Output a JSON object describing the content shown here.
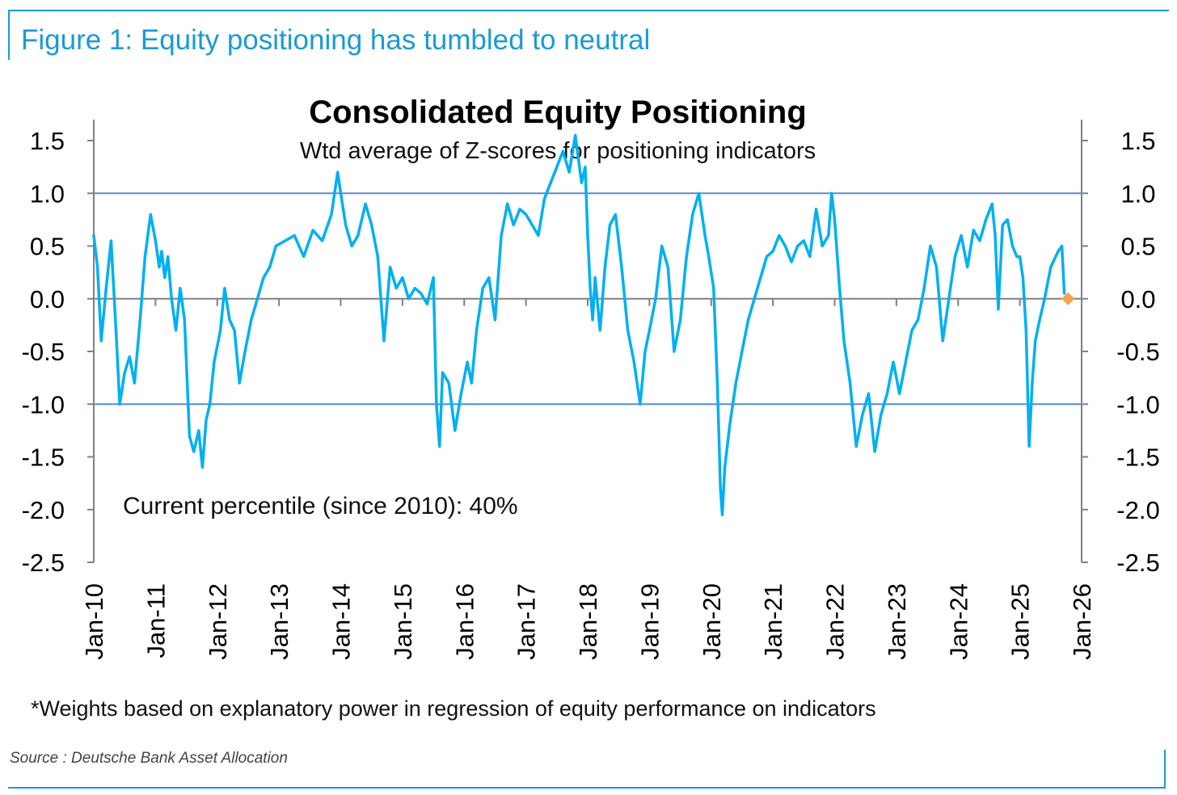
{
  "figure": {
    "title": "Figure 1: Equity positioning has tumbled to neutral",
    "footnote": "*Weights based on explanatory power in regression of equity performance on indicators",
    "source": "Source : Deutsche Bank Asset Allocation"
  },
  "colors": {
    "frame": "#1a9ad6",
    "series": "#00b0f0",
    "marker": "#f5a04c",
    "refline": "#5b8ac9",
    "axis": "#808080"
  },
  "chart_data": {
    "type": "line",
    "title": "Consolidated Equity Positioning",
    "subtitle": "Wtd average of Z-scores for positioning indicators",
    "annotation": "Current percentile (since 2010): 40%",
    "xlabel": "",
    "ylabel": "",
    "ylim": [
      -2.5,
      1.5
    ],
    "xlim": [
      2010.0,
      2026.0
    ],
    "yticks": [
      "1.5",
      "1.0",
      "0.5",
      "0.0",
      "-0.5",
      "-1.0",
      "-1.5",
      "-2.0",
      "-2.5"
    ],
    "ytick_values": [
      1.5,
      1.0,
      0.5,
      0.0,
      -0.5,
      -1.0,
      -1.5,
      -2.0,
      -2.5
    ],
    "xticks": [
      "Jan-10",
      "Jan-11",
      "Jan-12",
      "Jan-13",
      "Jan-14",
      "Jan-15",
      "Jan-16",
      "Jan-17",
      "Jan-18",
      "Jan-19",
      "Jan-20",
      "Jan-21",
      "Jan-22",
      "Jan-23",
      "Jan-24",
      "Jan-25",
      "Jan-26"
    ],
    "reference_lines": [
      1.0,
      -1.0
    ],
    "legend": "none",
    "series": [
      {
        "name": "Consolidated Equity Positioning",
        "x": [
          2010.0,
          2010.06,
          2010.12,
          2010.2,
          2010.28,
          2010.36,
          2010.42,
          2010.5,
          2010.58,
          2010.66,
          2010.75,
          2010.83,
          2010.92,
          2011.0,
          2011.06,
          2011.1,
          2011.15,
          2011.2,
          2011.26,
          2011.33,
          2011.4,
          2011.47,
          2011.55,
          2011.62,
          2011.7,
          2011.76,
          2011.82,
          2011.88,
          2011.95,
          2012.05,
          2012.12,
          2012.2,
          2012.28,
          2012.36,
          2012.45,
          2012.55,
          2012.65,
          2012.75,
          2012.85,
          2012.95,
          2013.1,
          2013.25,
          2013.4,
          2013.55,
          2013.7,
          2013.85,
          2013.95,
          2014.0,
          2014.08,
          2014.18,
          2014.28,
          2014.4,
          2014.5,
          2014.6,
          2014.7,
          2014.8,
          2014.9,
          2015.0,
          2015.1,
          2015.2,
          2015.3,
          2015.4,
          2015.5,
          2015.55,
          2015.6,
          2015.65,
          2015.75,
          2015.85,
          2015.95,
          2016.05,
          2016.12,
          2016.2,
          2016.3,
          2016.4,
          2016.5,
          2016.6,
          2016.7,
          2016.8,
          2016.9,
          2017.0,
          2017.1,
          2017.2,
          2017.3,
          2017.4,
          2017.5,
          2017.6,
          2017.7,
          2017.8,
          2017.9,
          2017.96,
          2018.0,
          2018.04,
          2018.08,
          2018.12,
          2018.2,
          2018.28,
          2018.36,
          2018.45,
          2018.55,
          2018.65,
          2018.75,
          2018.85,
          2018.93,
          2019.0,
          2019.1,
          2019.2,
          2019.3,
          2019.4,
          2019.5,
          2019.6,
          2019.7,
          2019.8,
          2019.9,
          2019.96,
          2020.04,
          2020.1,
          2020.15,
          2020.18,
          2020.22,
          2020.3,
          2020.4,
          2020.5,
          2020.6,
          2020.7,
          2020.8,
          2020.9,
          2021.0,
          2021.1,
          2021.2,
          2021.3,
          2021.4,
          2021.5,
          2021.6,
          2021.7,
          2021.8,
          2021.9,
          2021.95,
          2022.0,
          2022.08,
          2022.15,
          2022.25,
          2022.35,
          2022.45,
          2022.55,
          2022.65,
          2022.75,
          2022.85,
          2022.95,
          2023.05,
          2023.15,
          2023.25,
          2023.35,
          2023.45,
          2023.55,
          2023.65,
          2023.75,
          2023.85,
          2023.95,
          2024.05,
          2024.15,
          2024.25,
          2024.35,
          2024.45,
          2024.55,
          2024.6,
          2024.65,
          2024.72,
          2024.8,
          2024.88,
          2024.95,
          2025.0,
          2025.05,
          2025.1,
          2025.15,
          2025.2,
          2025.25,
          2025.32,
          2025.4,
          2025.5,
          2025.58,
          2025.62,
          2025.68,
          2025.72
        ],
        "values": [
          0.6,
          0.3,
          -0.4,
          0.1,
          0.55,
          -0.3,
          -1.0,
          -0.7,
          -0.55,
          -0.8,
          -0.2,
          0.4,
          0.8,
          0.55,
          0.3,
          0.45,
          0.2,
          0.4,
          0.0,
          -0.3,
          0.1,
          -0.2,
          -1.3,
          -1.45,
          -1.25,
          -1.6,
          -1.15,
          -1.0,
          -0.6,
          -0.3,
          0.1,
          -0.2,
          -0.3,
          -0.8,
          -0.5,
          -0.2,
          0.0,
          0.2,
          0.3,
          0.5,
          0.55,
          0.6,
          0.4,
          0.65,
          0.55,
          0.8,
          1.2,
          1.0,
          0.7,
          0.5,
          0.6,
          0.9,
          0.7,
          0.4,
          -0.4,
          0.3,
          0.1,
          0.2,
          0.0,
          0.1,
          0.05,
          -0.05,
          0.2,
          -1.0,
          -1.4,
          -0.7,
          -0.8,
          -1.25,
          -0.9,
          -0.6,
          -0.8,
          -0.3,
          0.1,
          0.2,
          -0.2,
          0.6,
          0.9,
          0.7,
          0.85,
          0.8,
          0.7,
          0.6,
          0.95,
          1.1,
          1.25,
          1.4,
          1.2,
          1.55,
          1.1,
          1.25,
          0.6,
          0.1,
          -0.2,
          0.2,
          -0.3,
          0.3,
          0.7,
          0.8,
          0.3,
          -0.3,
          -0.6,
          -1.0,
          -0.5,
          -0.3,
          0.0,
          0.5,
          0.3,
          -0.5,
          -0.2,
          0.4,
          0.8,
          1.0,
          0.6,
          0.4,
          0.1,
          -0.8,
          -1.8,
          -2.05,
          -1.6,
          -1.2,
          -0.8,
          -0.5,
          -0.2,
          0.0,
          0.2,
          0.4,
          0.45,
          0.6,
          0.5,
          0.35,
          0.5,
          0.55,
          0.4,
          0.85,
          0.5,
          0.6,
          1.0,
          0.75,
          0.1,
          -0.4,
          -0.8,
          -1.4,
          -1.1,
          -0.9,
          -1.45,
          -1.1,
          -0.9,
          -0.6,
          -0.9,
          -0.6,
          -0.3,
          -0.2,
          0.1,
          0.5,
          0.3,
          -0.4,
          0.0,
          0.4,
          0.6,
          0.3,
          0.65,
          0.55,
          0.75,
          0.9,
          0.6,
          -0.1,
          0.7,
          0.75,
          0.5,
          0.4,
          0.4,
          0.2,
          -0.3,
          -1.4,
          -0.8,
          -0.4,
          -0.2,
          0.0,
          0.3,
          0.4,
          0.45,
          0.5,
          0.05
        ]
      }
    ],
    "current_marker": {
      "x": 2025.78,
      "y": 0.0
    }
  }
}
